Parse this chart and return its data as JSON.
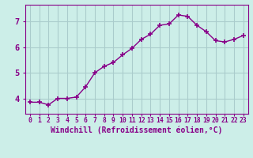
{
  "x": [
    0,
    1,
    2,
    3,
    4,
    5,
    6,
    7,
    8,
    9,
    10,
    11,
    12,
    13,
    14,
    15,
    16,
    17,
    18,
    19,
    20,
    21,
    22,
    23
  ],
  "y": [
    3.85,
    3.85,
    3.75,
    4.0,
    4.0,
    4.05,
    4.45,
    5.0,
    5.25,
    5.4,
    5.7,
    5.95,
    6.3,
    6.5,
    6.85,
    6.9,
    7.25,
    7.2,
    6.85,
    6.6,
    6.25,
    6.2,
    6.3,
    6.45
  ],
  "line_color": "#880088",
  "marker": "+",
  "marker_size": 4,
  "marker_lw": 1.2,
  "linewidth": 1.0,
  "bg_color": "#cceee8",
  "grid_color": "#aacccc",
  "xlabel": "Windchill (Refroidissement éolien,°C)",
  "xlim": [
    -0.5,
    23.5
  ],
  "ylim": [
    3.4,
    7.65
  ],
  "yticks": [
    4,
    5,
    6,
    7
  ],
  "xtick_labels": [
    "0",
    "1",
    "2",
    "3",
    "4",
    "5",
    "6",
    "7",
    "8",
    "9",
    "10",
    "11",
    "12",
    "13",
    "14",
    "15",
    "16",
    "17",
    "18",
    "19",
    "20",
    "21",
    "22",
    "23"
  ],
  "spine_color": "#880088",
  "tick_color": "#880088",
  "label_color": "#880088",
  "label_fontsize": 7.0,
  "ytick_fontsize": 7.5,
  "xtick_fontsize": 5.8
}
